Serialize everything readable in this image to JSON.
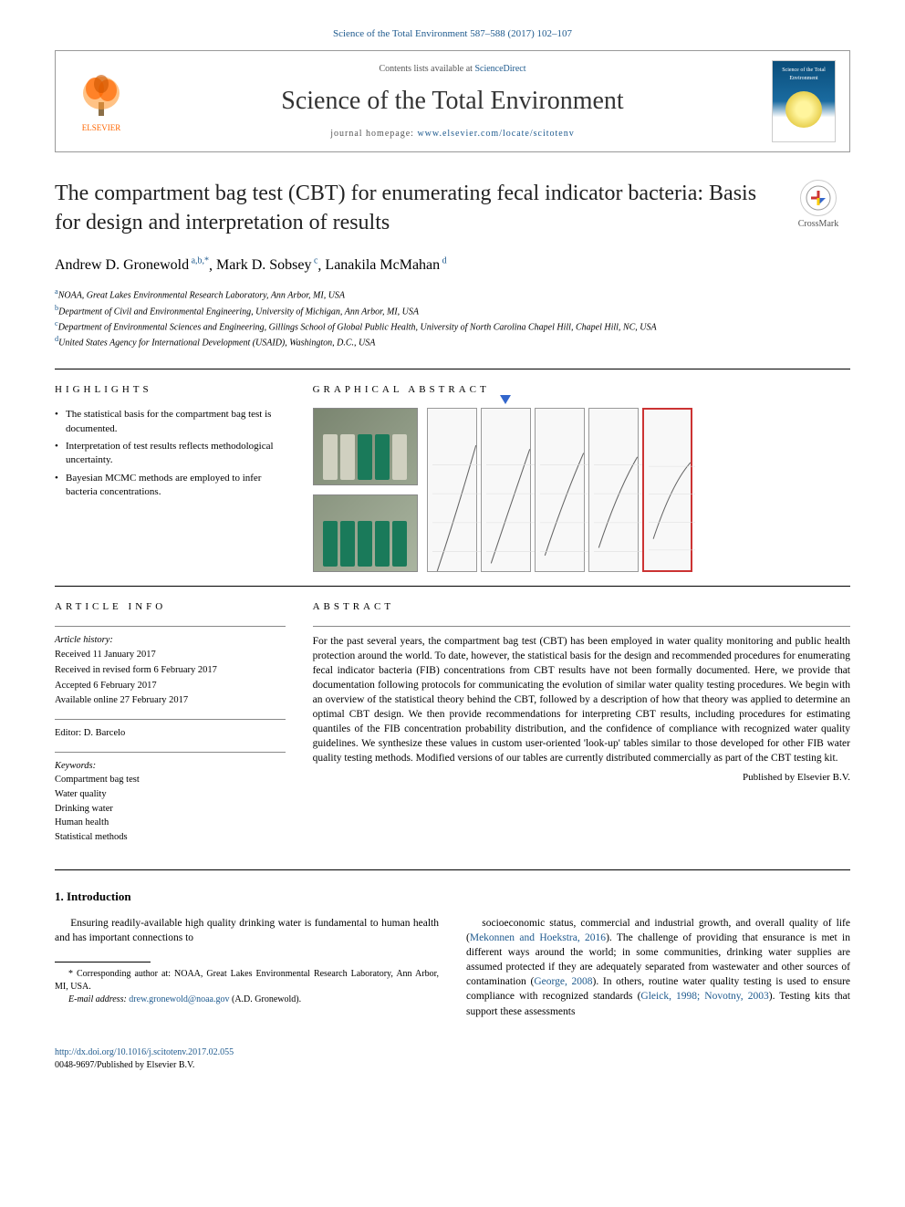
{
  "top_reference": "Science of the Total Environment 587–588 (2017) 102–107",
  "header": {
    "contents_prefix": "Contents lists available at ",
    "contents_link": "ScienceDirect",
    "journal_name": "Science of the Total Environment",
    "homepage_prefix": "journal homepage: ",
    "homepage_url": "www.elsevier.com/locate/scitotenv",
    "publisher_label": "ELSEVIER",
    "cover_text": "Science of the Total Environment"
  },
  "crossmark_label": "CrossMark",
  "title": "The compartment bag test (CBT) for enumerating fecal indicator bacteria: Basis for design and interpretation of results",
  "authors_html": "Andrew D. Gronewold",
  "authors": [
    {
      "name": "Andrew D. Gronewold",
      "sup": "a,b,*"
    },
    {
      "name": "Mark D. Sobsey",
      "sup": "c"
    },
    {
      "name": "Lanakila McMahan",
      "sup": "d"
    }
  ],
  "affiliations": [
    {
      "sup": "a",
      "text": "NOAA, Great Lakes Environmental Research Laboratory, Ann Arbor, MI, USA"
    },
    {
      "sup": "b",
      "text": "Department of Civil and Environmental Engineering, University of Michigan, Ann Arbor, MI, USA"
    },
    {
      "sup": "c",
      "text": "Department of Environmental Sciences and Engineering, Gillings School of Global Public Health, University of North Carolina Chapel Hill, Chapel Hill, NC, USA"
    },
    {
      "sup": "d",
      "text": "United States Agency for International Development (USAID), Washington, D.C., USA"
    }
  ],
  "section_headings": {
    "highlights": "HIGHLIGHTS",
    "graphical_abstract": "GRAPHICAL ABSTRACT",
    "article_info": "ARTICLE INFO",
    "abstract": "ABSTRACT"
  },
  "highlights": [
    "The statistical basis for the compartment bag test is documented.",
    "Interpretation of test results reflects methodological uncertainty.",
    "Bayesian MCMC methods are employed to infer bacteria concentrations."
  ],
  "graphical_abstract": {
    "photo1_bags": [
      {
        "color": "clear"
      },
      {
        "color": "clear"
      },
      {
        "color": "green"
      },
      {
        "color": "green"
      },
      {
        "color": "clear"
      }
    ],
    "photo2_bags": [
      {
        "color": "green"
      },
      {
        "color": "green"
      },
      {
        "color": "green"
      },
      {
        "color": "green"
      },
      {
        "color": "green"
      }
    ],
    "panels": 5,
    "blue_arrow_index": 1,
    "red_border_index": 4,
    "panel_border_color": "#999999",
    "red_color": "#cc3333",
    "blue_color": "#3366cc"
  },
  "article_info": {
    "history_label": "Article history:",
    "history": [
      "Received 11 January 2017",
      "Received in revised form 6 February 2017",
      "Accepted 6 February 2017",
      "Available online 27 February 2017"
    ],
    "editor_label": "Editor: ",
    "editor": "D. Barcelo",
    "keywords_label": "Keywords:",
    "keywords": [
      "Compartment bag test",
      "Water quality",
      "Drinking water",
      "Human health",
      "Statistical methods"
    ]
  },
  "abstract": "For the past several years, the compartment bag test (CBT) has been employed in water quality monitoring and public health protection around the world. To date, however, the statistical basis for the design and recommended procedures for enumerating fecal indicator bacteria (FIB) concentrations from CBT results have not been formally documented. Here, we provide that documentation following protocols for communicating the evolution of similar water quality testing procedures. We begin with an overview of the statistical theory behind the CBT, followed by a description of how that theory was applied to determine an optimal CBT design. We then provide recommendations for interpreting CBT results, including procedures for estimating quantiles of the FIB concentration probability distribution, and the confidence of compliance with recognized water quality guidelines. We synthesize these values in custom user-oriented 'look-up' tables similar to those developed for other FIB water quality testing methods. Modified versions of our tables are currently distributed commercially as part of the CBT testing kit.",
  "published_by": "Published by Elsevier B.V.",
  "intro": {
    "heading": "1. Introduction",
    "col1": "Ensuring readily-available high quality drinking water is fundamental to human health and has important connections to",
    "col2_parts": [
      "socioeconomic status, commercial and industrial growth, and overall quality of life (",
      "Mekonnen and Hoekstra, 2016",
      "). The challenge of providing that ensurance is met in different ways around the world; in some communities, drinking water supplies are assumed protected if they are adequately separated from wastewater and other sources of contamination (",
      "George, 2008",
      "). In others, routine water quality testing is used to ensure compliance with recognized standards (",
      "Gleick, 1998; Novotny, 2003",
      "). Testing kits that support these assessments"
    ]
  },
  "footnote": {
    "corresponding": "* Corresponding author at: NOAA, Great Lakes Environmental Research Laboratory, Ann Arbor, MI, USA.",
    "email_label": "E-mail address: ",
    "email": "drew.gronewold@noaa.gov",
    "email_person": " (A.D. Gronewold)."
  },
  "doi": {
    "url": "http://dx.doi.org/10.1016/j.scitotenv.2017.02.055",
    "issn": "0048-9697/Published by Elsevier B.V."
  },
  "colors": {
    "link": "#1e5a8e",
    "text": "#000000",
    "elsevier_orange": "#ff6600",
    "bag_green": "#1a7a5a",
    "bag_clear": "#d0d0c0"
  }
}
